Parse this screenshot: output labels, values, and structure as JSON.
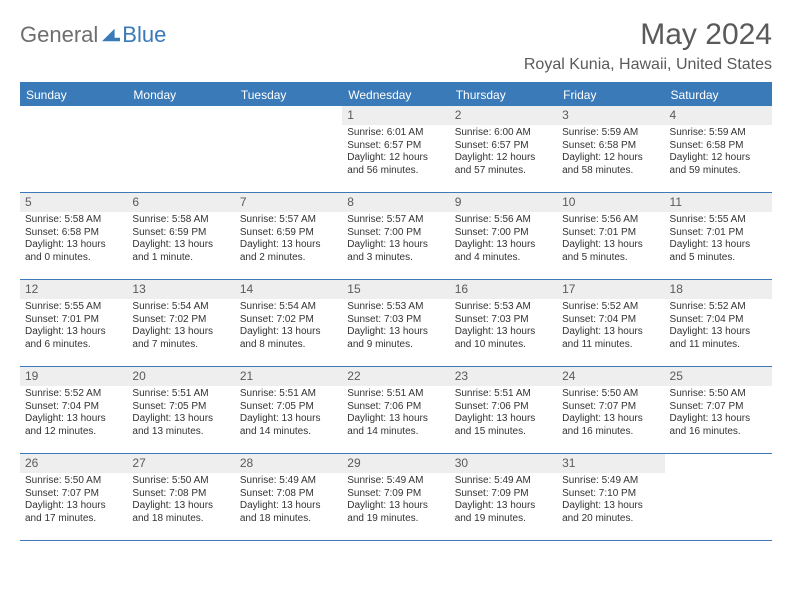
{
  "logo": {
    "text1": "General",
    "text2": "Blue"
  },
  "title": "May 2024",
  "location": "Royal Kunia, Hawaii, United States",
  "day_headers": [
    "Sunday",
    "Monday",
    "Tuesday",
    "Wednesday",
    "Thursday",
    "Friday",
    "Saturday"
  ],
  "header_bg": "#3a7ab8",
  "daynum_bg": "#eeeeee",
  "rule_color": "#3a7ab8",
  "weeks": [
    [
      null,
      null,
      null,
      {
        "n": "1",
        "r": "Sunrise: 6:01 AM",
        "s": "Sunset: 6:57 PM",
        "d1": "Daylight: 12 hours",
        "d2": "and 56 minutes."
      },
      {
        "n": "2",
        "r": "Sunrise: 6:00 AM",
        "s": "Sunset: 6:57 PM",
        "d1": "Daylight: 12 hours",
        "d2": "and 57 minutes."
      },
      {
        "n": "3",
        "r": "Sunrise: 5:59 AM",
        "s": "Sunset: 6:58 PM",
        "d1": "Daylight: 12 hours",
        "d2": "and 58 minutes."
      },
      {
        "n": "4",
        "r": "Sunrise: 5:59 AM",
        "s": "Sunset: 6:58 PM",
        "d1": "Daylight: 12 hours",
        "d2": "and 59 minutes."
      }
    ],
    [
      {
        "n": "5",
        "r": "Sunrise: 5:58 AM",
        "s": "Sunset: 6:58 PM",
        "d1": "Daylight: 13 hours",
        "d2": "and 0 minutes."
      },
      {
        "n": "6",
        "r": "Sunrise: 5:58 AM",
        "s": "Sunset: 6:59 PM",
        "d1": "Daylight: 13 hours",
        "d2": "and 1 minute."
      },
      {
        "n": "7",
        "r": "Sunrise: 5:57 AM",
        "s": "Sunset: 6:59 PM",
        "d1": "Daylight: 13 hours",
        "d2": "and 2 minutes."
      },
      {
        "n": "8",
        "r": "Sunrise: 5:57 AM",
        "s": "Sunset: 7:00 PM",
        "d1": "Daylight: 13 hours",
        "d2": "and 3 minutes."
      },
      {
        "n": "9",
        "r": "Sunrise: 5:56 AM",
        "s": "Sunset: 7:00 PM",
        "d1": "Daylight: 13 hours",
        "d2": "and 4 minutes."
      },
      {
        "n": "10",
        "r": "Sunrise: 5:56 AM",
        "s": "Sunset: 7:01 PM",
        "d1": "Daylight: 13 hours",
        "d2": "and 5 minutes."
      },
      {
        "n": "11",
        "r": "Sunrise: 5:55 AM",
        "s": "Sunset: 7:01 PM",
        "d1": "Daylight: 13 hours",
        "d2": "and 5 minutes."
      }
    ],
    [
      {
        "n": "12",
        "r": "Sunrise: 5:55 AM",
        "s": "Sunset: 7:01 PM",
        "d1": "Daylight: 13 hours",
        "d2": "and 6 minutes."
      },
      {
        "n": "13",
        "r": "Sunrise: 5:54 AM",
        "s": "Sunset: 7:02 PM",
        "d1": "Daylight: 13 hours",
        "d2": "and 7 minutes."
      },
      {
        "n": "14",
        "r": "Sunrise: 5:54 AM",
        "s": "Sunset: 7:02 PM",
        "d1": "Daylight: 13 hours",
        "d2": "and 8 minutes."
      },
      {
        "n": "15",
        "r": "Sunrise: 5:53 AM",
        "s": "Sunset: 7:03 PM",
        "d1": "Daylight: 13 hours",
        "d2": "and 9 minutes."
      },
      {
        "n": "16",
        "r": "Sunrise: 5:53 AM",
        "s": "Sunset: 7:03 PM",
        "d1": "Daylight: 13 hours",
        "d2": "and 10 minutes."
      },
      {
        "n": "17",
        "r": "Sunrise: 5:52 AM",
        "s": "Sunset: 7:04 PM",
        "d1": "Daylight: 13 hours",
        "d2": "and 11 minutes."
      },
      {
        "n": "18",
        "r": "Sunrise: 5:52 AM",
        "s": "Sunset: 7:04 PM",
        "d1": "Daylight: 13 hours",
        "d2": "and 11 minutes."
      }
    ],
    [
      {
        "n": "19",
        "r": "Sunrise: 5:52 AM",
        "s": "Sunset: 7:04 PM",
        "d1": "Daylight: 13 hours",
        "d2": "and 12 minutes."
      },
      {
        "n": "20",
        "r": "Sunrise: 5:51 AM",
        "s": "Sunset: 7:05 PM",
        "d1": "Daylight: 13 hours",
        "d2": "and 13 minutes."
      },
      {
        "n": "21",
        "r": "Sunrise: 5:51 AM",
        "s": "Sunset: 7:05 PM",
        "d1": "Daylight: 13 hours",
        "d2": "and 14 minutes."
      },
      {
        "n": "22",
        "r": "Sunrise: 5:51 AM",
        "s": "Sunset: 7:06 PM",
        "d1": "Daylight: 13 hours",
        "d2": "and 14 minutes."
      },
      {
        "n": "23",
        "r": "Sunrise: 5:51 AM",
        "s": "Sunset: 7:06 PM",
        "d1": "Daylight: 13 hours",
        "d2": "and 15 minutes."
      },
      {
        "n": "24",
        "r": "Sunrise: 5:50 AM",
        "s": "Sunset: 7:07 PM",
        "d1": "Daylight: 13 hours",
        "d2": "and 16 minutes."
      },
      {
        "n": "25",
        "r": "Sunrise: 5:50 AM",
        "s": "Sunset: 7:07 PM",
        "d1": "Daylight: 13 hours",
        "d2": "and 16 minutes."
      }
    ],
    [
      {
        "n": "26",
        "r": "Sunrise: 5:50 AM",
        "s": "Sunset: 7:07 PM",
        "d1": "Daylight: 13 hours",
        "d2": "and 17 minutes."
      },
      {
        "n": "27",
        "r": "Sunrise: 5:50 AM",
        "s": "Sunset: 7:08 PM",
        "d1": "Daylight: 13 hours",
        "d2": "and 18 minutes."
      },
      {
        "n": "28",
        "r": "Sunrise: 5:49 AM",
        "s": "Sunset: 7:08 PM",
        "d1": "Daylight: 13 hours",
        "d2": "and 18 minutes."
      },
      {
        "n": "29",
        "r": "Sunrise: 5:49 AM",
        "s": "Sunset: 7:09 PM",
        "d1": "Daylight: 13 hours",
        "d2": "and 19 minutes."
      },
      {
        "n": "30",
        "r": "Sunrise: 5:49 AM",
        "s": "Sunset: 7:09 PM",
        "d1": "Daylight: 13 hours",
        "d2": "and 19 minutes."
      },
      {
        "n": "31",
        "r": "Sunrise: 5:49 AM",
        "s": "Sunset: 7:10 PM",
        "d1": "Daylight: 13 hours",
        "d2": "and 20 minutes."
      },
      null
    ]
  ]
}
